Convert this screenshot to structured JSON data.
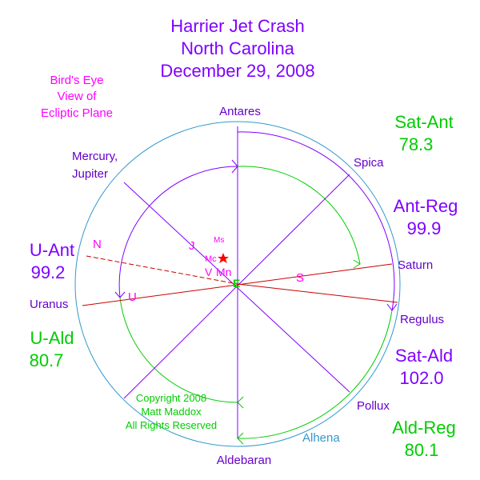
{
  "title": {
    "line1": "Harrier Jet Crash",
    "line2": "North Carolina",
    "line3": "December 29, 2008"
  },
  "subtitle": {
    "line1": "Bird's Eye",
    "line2": "View of",
    "line3": "Ecliptic Plane"
  },
  "stars": {
    "antares": "Antares",
    "spica": "Spica",
    "saturn": "Saturn",
    "regulus": "Regulus",
    "pollux": "Pollux",
    "alhena": "Alhena",
    "aldebaran": "Aldebaran",
    "uranus": "Uranus",
    "mercury_line1": "Mercury,",
    "mercury_line2": "Jupiter"
  },
  "markers": {
    "north": "N",
    "south": "S",
    "uranus": "U",
    "jupiter": "J",
    "venus": "V",
    "moon": "Mn",
    "mercury": "Mc",
    "mars": "Ms",
    "earth": "E"
  },
  "angles": {
    "sat_ant": {
      "label": "Sat-Ant",
      "value": "78.3"
    },
    "ant_reg": {
      "label": "Ant-Reg",
      "value": "99.9"
    },
    "u_ant": {
      "label": "U-Ant",
      "value": "99.2"
    },
    "u_ald": {
      "label": "U-Ald",
      "value": "80.7"
    },
    "sat_ald": {
      "label": "Sat-Ald",
      "value": "102.0"
    },
    "ald_reg": {
      "label": "Ald-Reg",
      "value": "80.1"
    }
  },
  "copyright": {
    "line1": "Copyright 2008",
    "line2": "Matt Maddox",
    "line3": "All Rights Reserved"
  },
  "colors": {
    "purple": "#8000ff",
    "green": "#00cc00",
    "magenta": "#ff00ff",
    "teal": "#3399cc",
    "red": "#cc0000",
    "label_violet": "#6600cc"
  }
}
